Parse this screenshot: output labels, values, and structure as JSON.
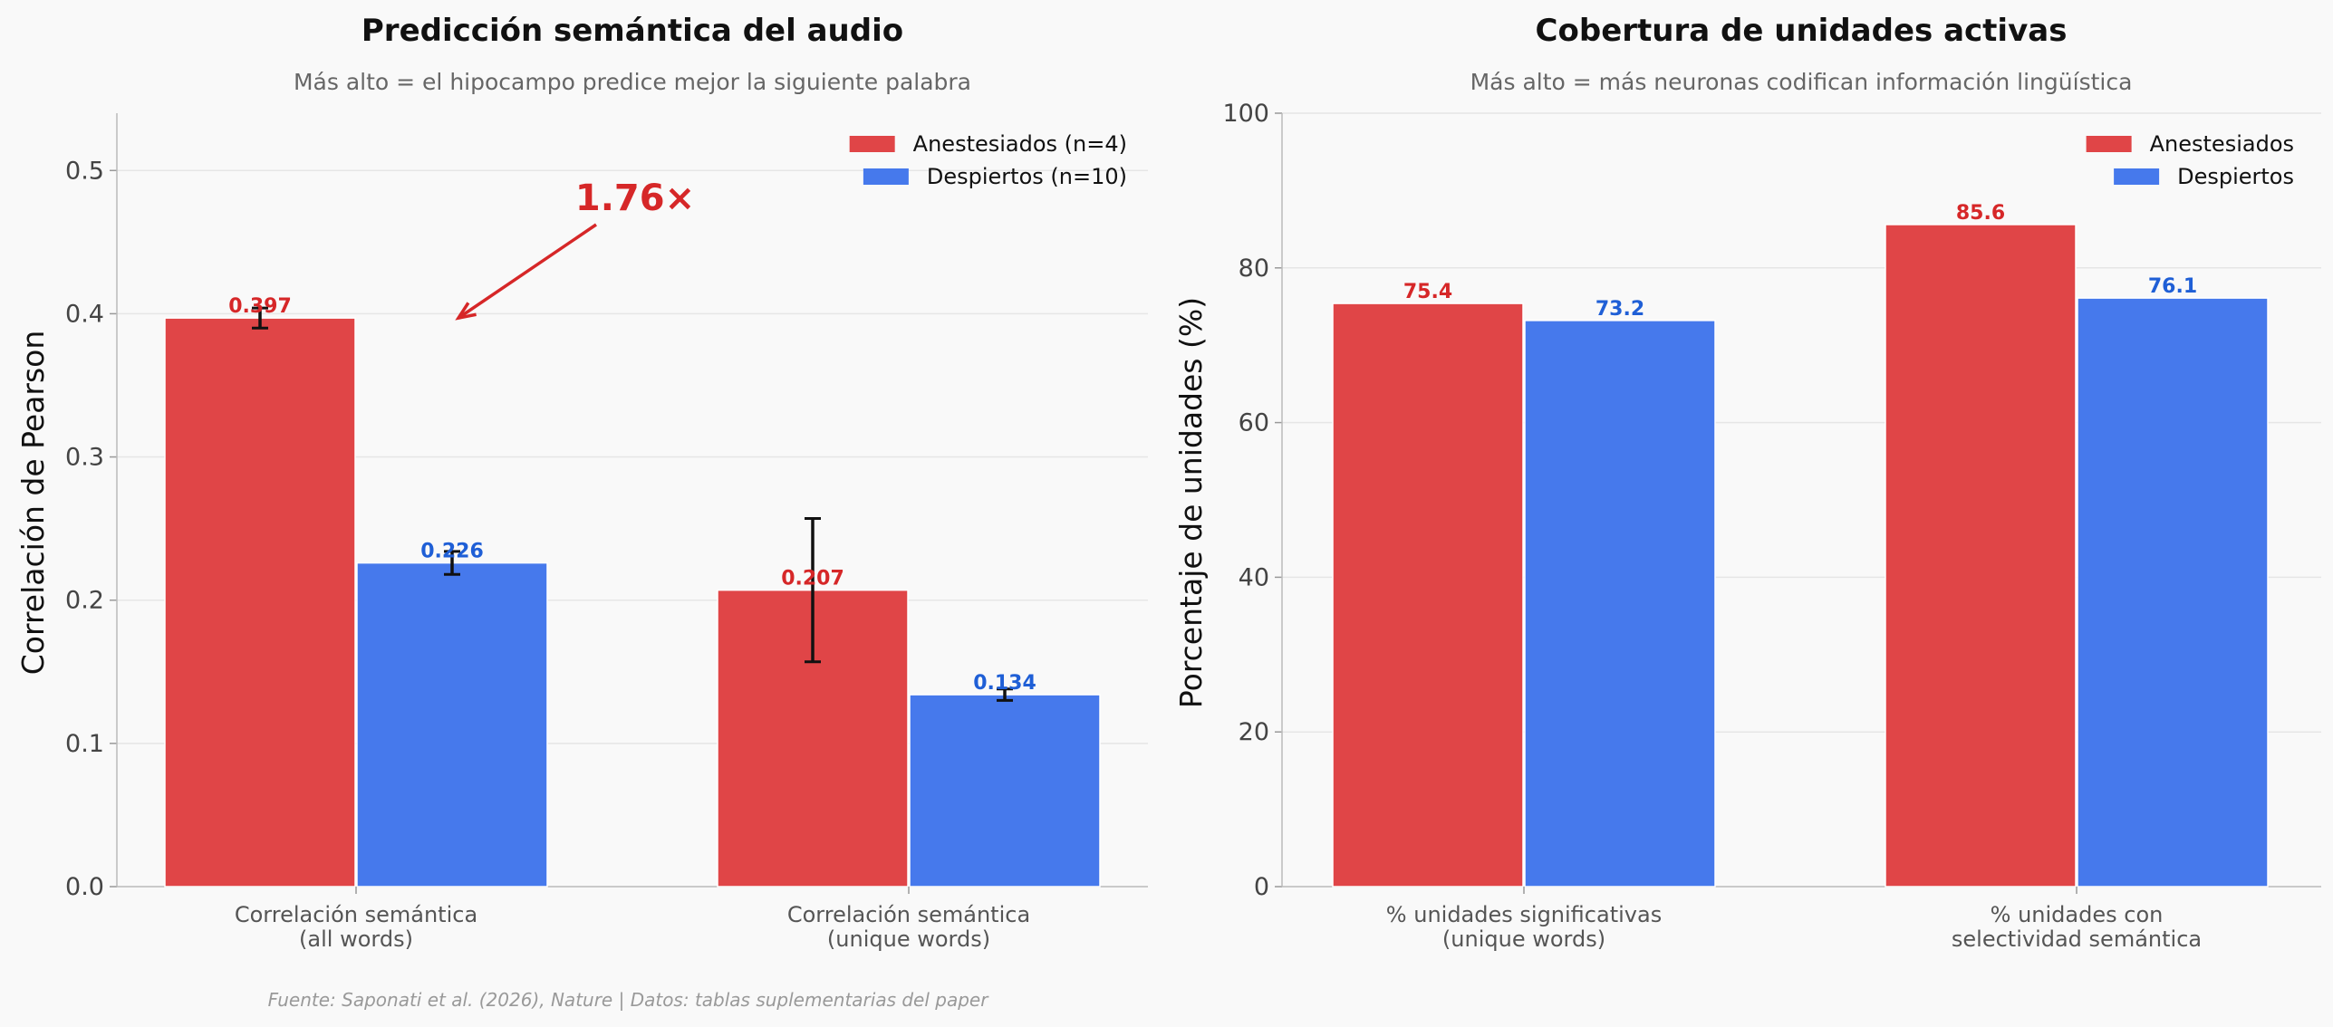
{
  "footer": "Fuente: Saponati et al. (2026), Nature | Datos: tablas suplementarias del paper",
  "colors": {
    "red": "#e04547",
    "blue": "#4679ec",
    "red_text": "#d62728",
    "blue_text": "#1f5fd6"
  },
  "chart_data": [
    {
      "type": "bar",
      "title": "Predicción semántica del audio",
      "subtitle": "Más alto = el hipocampo predice mejor la siguiente palabra",
      "ylabel": "Correlación de Pearson",
      "ylim": [
        0,
        0.54
      ],
      "yticks": [
        "0.0",
        "0.1",
        "0.2",
        "0.3",
        "0.4",
        "0.5"
      ],
      "ytick_values": [
        0,
        0.1,
        0.2,
        0.3,
        0.4,
        0.5
      ],
      "categories": [
        [
          "Correlación semántica",
          "(all words)"
        ],
        [
          "Correlación semántica",
          "(unique words)"
        ]
      ],
      "series": [
        {
          "name": "Anestesiados (n=4)",
          "values": [
            0.397,
            0.207
          ],
          "labels": [
            "0.397",
            "0.207"
          ],
          "errors": [
            0.007,
            0.05
          ]
        },
        {
          "name": "Despiertos (n=10)",
          "values": [
            0.226,
            0.134
          ],
          "labels": [
            "0.226",
            "0.134"
          ],
          "errors": [
            0.008,
            0.004
          ]
        }
      ],
      "annotation": {
        "text": "1.76×"
      },
      "legend": "top-right",
      "grid": true
    },
    {
      "type": "bar",
      "title": "Cobertura de unidades activas",
      "subtitle": "Más alto = más neuronas codifican información lingüística",
      "ylabel": "Porcentaje de unidades (%)",
      "ylim": [
        0,
        100
      ],
      "yticks": [
        "0",
        "20",
        "40",
        "60",
        "80",
        "100"
      ],
      "ytick_values": [
        0,
        20,
        40,
        60,
        80,
        100
      ],
      "categories": [
        [
          "% unidades significativas",
          "(unique words)"
        ],
        [
          "% unidades con",
          "selectividad semántica"
        ]
      ],
      "series": [
        {
          "name": "Anestesiados",
          "values": [
            75.4,
            85.6
          ],
          "labels": [
            "75.4",
            "85.6"
          ]
        },
        {
          "name": "Despiertos",
          "values": [
            73.2,
            76.1
          ],
          "labels": [
            "73.2",
            "76.1"
          ]
        }
      ],
      "legend": "top-right",
      "grid": true
    }
  ]
}
